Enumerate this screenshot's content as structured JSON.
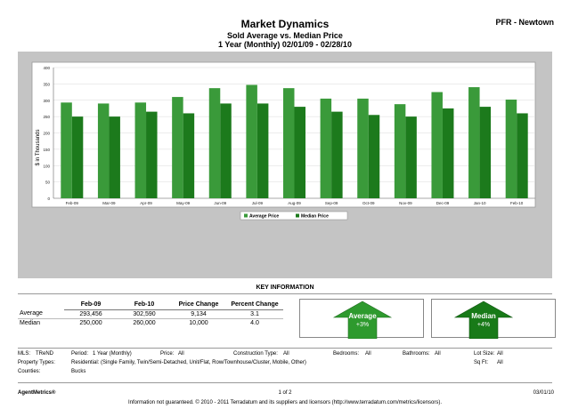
{
  "header": {
    "title": "Market Dynamics",
    "subtitle": "Sold Average vs. Median Price",
    "range": "1 Year (Monthly) 02/01/09 - 02/28/10",
    "region": "PFR - Newtown"
  },
  "chart_data": {
    "type": "bar",
    "categories": [
      "Feb-09",
      "Mar-09",
      "Apr-09",
      "May-09",
      "Jun-09",
      "Jul-09",
      "Aug-09",
      "Sep-09",
      "Oct-09",
      "Nov-09",
      "Dec-09",
      "Jan-10",
      "Feb-10"
    ],
    "series": [
      {
        "name": "Average Price",
        "color": "#3a9a3a",
        "values": [
          293,
          290,
          293,
          310,
          337,
          347,
          337,
          305,
          305,
          288,
          325,
          340,
          302
        ]
      },
      {
        "name": "Median Price",
        "color": "#1c7a1c",
        "values": [
          250,
          250,
          265,
          260,
          290,
          290,
          280,
          265,
          255,
          250,
          275,
          280,
          260
        ]
      }
    ],
    "ylabel": "$ in Thousands",
    "ylim": [
      0,
      400
    ],
    "yticks": [
      "0",
      "50",
      "100",
      "150",
      "200",
      "250",
      "300",
      "350",
      "400"
    ],
    "grid": true,
    "legend_position": "bottom-center"
  },
  "key_info": {
    "title": "KEY INFORMATION",
    "columns": [
      "",
      "Feb-09",
      "Feb-10",
      "Price Change",
      "Percent Change"
    ],
    "rows": [
      [
        "Average",
        "293,456",
        "302,590",
        "9,134",
        "3.1"
      ],
      [
        "Median",
        "250,000",
        "260,000",
        "10,000",
        "4.0"
      ]
    ],
    "arrows": [
      {
        "label": "Average",
        "change": "+3%",
        "color": "#2e9a2e",
        "icon": "up-arrow-icon"
      },
      {
        "label": "Median",
        "change": "+4%",
        "color": "#187a18",
        "icon": "up-arrow-icon"
      }
    ]
  },
  "criteria": {
    "mls_label": "MLS:",
    "mls_value": "TReND",
    "period_label": "Period:",
    "period_value": "1 Year (Monthly)",
    "price_label": "Price:",
    "price_value": "All",
    "construction_label": "Construction Type:",
    "construction_value": "All",
    "bedrooms_label": "Bedrooms:",
    "bedrooms_value": "All",
    "bathrooms_label": "Bathrooms:",
    "bathrooms_value": "All",
    "lotsize_label": "Lot Size:",
    "lotsize_value": "All",
    "proptypes_label": "Property Types:",
    "proptypes_value": "Residential: (Single Family, Twin/Semi-Detached, Unit/Flat, Row/Townhouse/Cluster, Mobile, Other)",
    "sqft_label": "Sq Ft:",
    "sqft_value": "All",
    "counties_label": "Counties:",
    "counties_value": "Bucks"
  },
  "footer": {
    "brand": "AgentMetrics®",
    "page": "1 of 2",
    "date": "03/01/10",
    "disclaimer": "Information not guaranteed. © 2010 - 2011 Terradatum and its suppliers and licensors (http://www.terradatum.com/metrics/licensors)."
  }
}
